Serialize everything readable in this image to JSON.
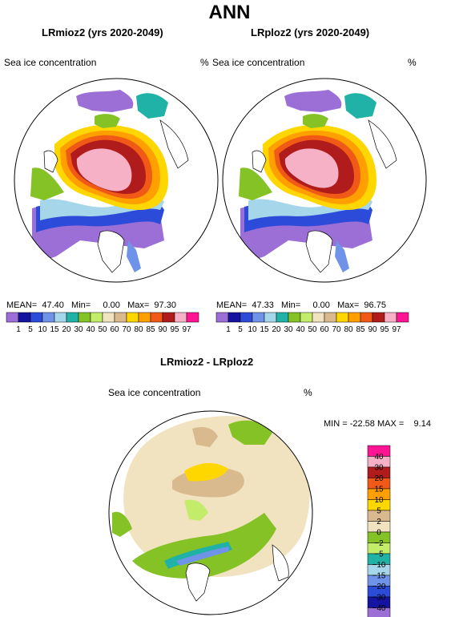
{
  "figure_title": "ANN",
  "panels": [
    {
      "title": "LRmioz2 (yrs 2020-2049)",
      "variable": "Sea ice concentration",
      "unit": "%",
      "mean_label": "MEAN=",
      "mean": "47.40",
      "min_label": "Min=",
      "min": "0.00",
      "max_label": "Max=",
      "max": "97.30"
    },
    {
      "title": "LRploz2 (yrs 2020-2049)",
      "variable": "Sea ice concentration",
      "unit": "%",
      "mean_label": "MEAN=",
      "mean": "47.33",
      "min_label": "Min=",
      "min": "0.00",
      "max_label": "Max=",
      "max": "96.75"
    }
  ],
  "top_colorbar": {
    "labels": [
      "1",
      "5",
      "10",
      "15",
      "20",
      "30",
      "40",
      "50",
      "60",
      "70",
      "80",
      "85",
      "90",
      "95",
      "97"
    ],
    "colors": [
      "#9b6fd6",
      "#1414a0",
      "#2c4bd8",
      "#6f93e8",
      "#a6d6ea",
      "#20b2a6",
      "#85c225",
      "#c4ec6b",
      "#f1e3c0",
      "#d9b98e",
      "#ffd700",
      "#ff9f00",
      "#f05a16",
      "#b01c1c",
      "#f7b1c7",
      "#ff1493"
    ]
  },
  "diff_panel": {
    "title": "LRmioz2 - LRploz2",
    "variable": "Sea ice concentration",
    "unit": "%",
    "min_label": "MIN =",
    "min": "-22.58",
    "max_label": "MAX =",
    "max": "9.14"
  },
  "diff_colorbar": {
    "labels": [
      "40",
      "30",
      "20",
      "15",
      "10",
      "5",
      "2",
      "0",
      "−2",
      "−5",
      "−10",
      "−15",
      "−20",
      "−30",
      "−40"
    ],
    "colors": [
      "#ff1493",
      "#f7b1c7",
      "#b01c1c",
      "#f05a16",
      "#ff9f00",
      "#ffd700",
      "#d9b98e",
      "#f1e3c0",
      "#85c225",
      "#c4ec6b",
      "#20b2a6",
      "#a6d6ea",
      "#6f93e8",
      "#2c4bd8",
      "#1414a0",
      "#9b6fd6"
    ]
  }
}
